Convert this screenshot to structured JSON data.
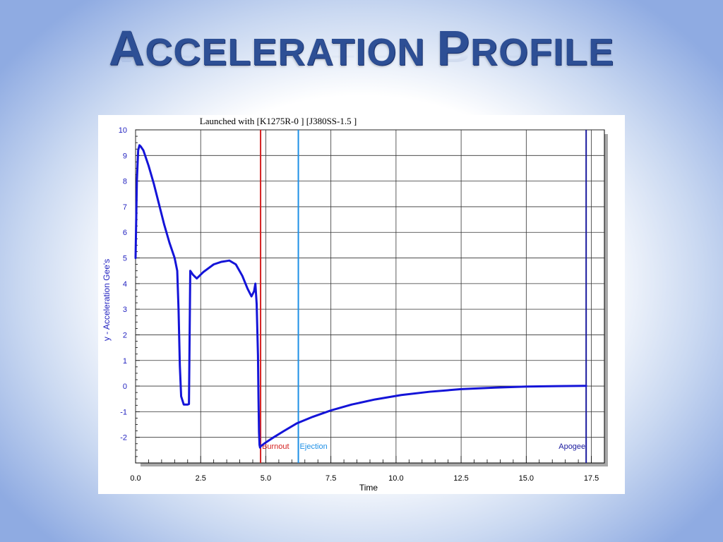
{
  "slide": {
    "title_first_initial": "A",
    "title_first_rest": "CCELERATION",
    "title_second_initial": "P",
    "title_second_rest": "ROFILE"
  },
  "chart_data": {
    "type": "line",
    "title": "Launched with [K1275R-0   ] [J380SS-1.5 ]",
    "xlabel": "Time",
    "ylabel": "y - Acceleration Gee's",
    "xlim": [
      0,
      18
    ],
    "ylim": [
      -3,
      10
    ],
    "x_ticks": [
      "0.0",
      "2.5",
      "5.0",
      "7.5",
      "10.0",
      "12.5",
      "15.0",
      "17.5"
    ],
    "y_ticks": [
      "10",
      "9",
      "8",
      "7",
      "6",
      "5",
      "4",
      "3",
      "2",
      "1",
      "0",
      "-1",
      "-2"
    ],
    "grid": true,
    "colors": {
      "series": "#1414d8",
      "burnout": "#d42020",
      "ejection": "#1e90e6",
      "apogee": "#1a1a9e",
      "y_axis_label": "#1f1fbf"
    },
    "series": [
      {
        "x": [
          0,
          0.05,
          0.1,
          0.15,
          0.2,
          0.3,
          0.5,
          0.7,
          0.9,
          1.1,
          1.3,
          1.5,
          1.6,
          1.65,
          1.7,
          1.75,
          1.85,
          1.9,
          1.95,
          2.0,
          2.05,
          2.1,
          2.2,
          2.35,
          2.6,
          3.0,
          3.3,
          3.6,
          3.85,
          4.1,
          4.3,
          4.45,
          4.55,
          4.6,
          4.65,
          4.7,
          4.72,
          4.74,
          4.76,
          4.78,
          4.8,
          5.0,
          5.3,
          5.7,
          6.2,
          6.8,
          7.5,
          8.3,
          9.2,
          10.2,
          11.3,
          12.5,
          13.8,
          15.0,
          16.2,
          17.2,
          17.3
        ],
        "y": [
          5.0,
          8.0,
          9.2,
          9.4,
          9.35,
          9.2,
          8.6,
          7.9,
          7.1,
          6.3,
          5.6,
          5.0,
          4.5,
          3.0,
          0.8,
          -0.4,
          -0.72,
          -0.72,
          -0.72,
          -0.72,
          -0.7,
          4.5,
          4.35,
          4.2,
          4.45,
          4.75,
          4.85,
          4.9,
          4.75,
          4.3,
          3.8,
          3.5,
          3.7,
          4.0,
          3.2,
          1.2,
          -0.5,
          -1.8,
          -2.3,
          -2.4,
          -2.35,
          -2.2,
          -2.0,
          -1.75,
          -1.45,
          -1.2,
          -0.95,
          -0.72,
          -0.52,
          -0.35,
          -0.22,
          -0.12,
          -0.06,
          -0.02,
          0.0,
          0.01,
          0.01
        ]
      }
    ],
    "events": [
      {
        "label": "Burnout",
        "x": 4.8,
        "color": "#d42020"
      },
      {
        "label": "Ejection",
        "x": 6.25,
        "color": "#1e90e6"
      },
      {
        "label": "Apogee",
        "x": 17.3,
        "color": "#1a1a9e"
      }
    ]
  }
}
